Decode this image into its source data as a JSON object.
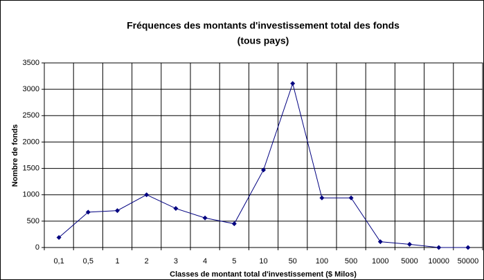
{
  "chart_data": {
    "type": "line",
    "title": "Fréquences des montants d'investissement total des fonds",
    "subtitle": "(tous pays)",
    "x_label": "Classes de montant total d'investissement ($ Milos)",
    "y_label": "Nombre de fonds",
    "categories": [
      "0,1",
      "0,5",
      "1",
      "2",
      "3",
      "4",
      "5",
      "10",
      "50",
      "100",
      "500",
      "1000",
      "5000",
      "10000",
      "50000"
    ],
    "series": [
      {
        "name": "Nombre de fonds",
        "color": "#000080",
        "values": [
          190,
          670,
          700,
          1000,
          740,
          560,
          450,
          1470,
          3110,
          940,
          940,
          110,
          60,
          0,
          0
        ]
      }
    ],
    "ylim": [
      0,
      3500
    ],
    "yticks": [
      0,
      500,
      1000,
      1500,
      2000,
      2500,
      3000,
      3500
    ],
    "grid": true
  }
}
